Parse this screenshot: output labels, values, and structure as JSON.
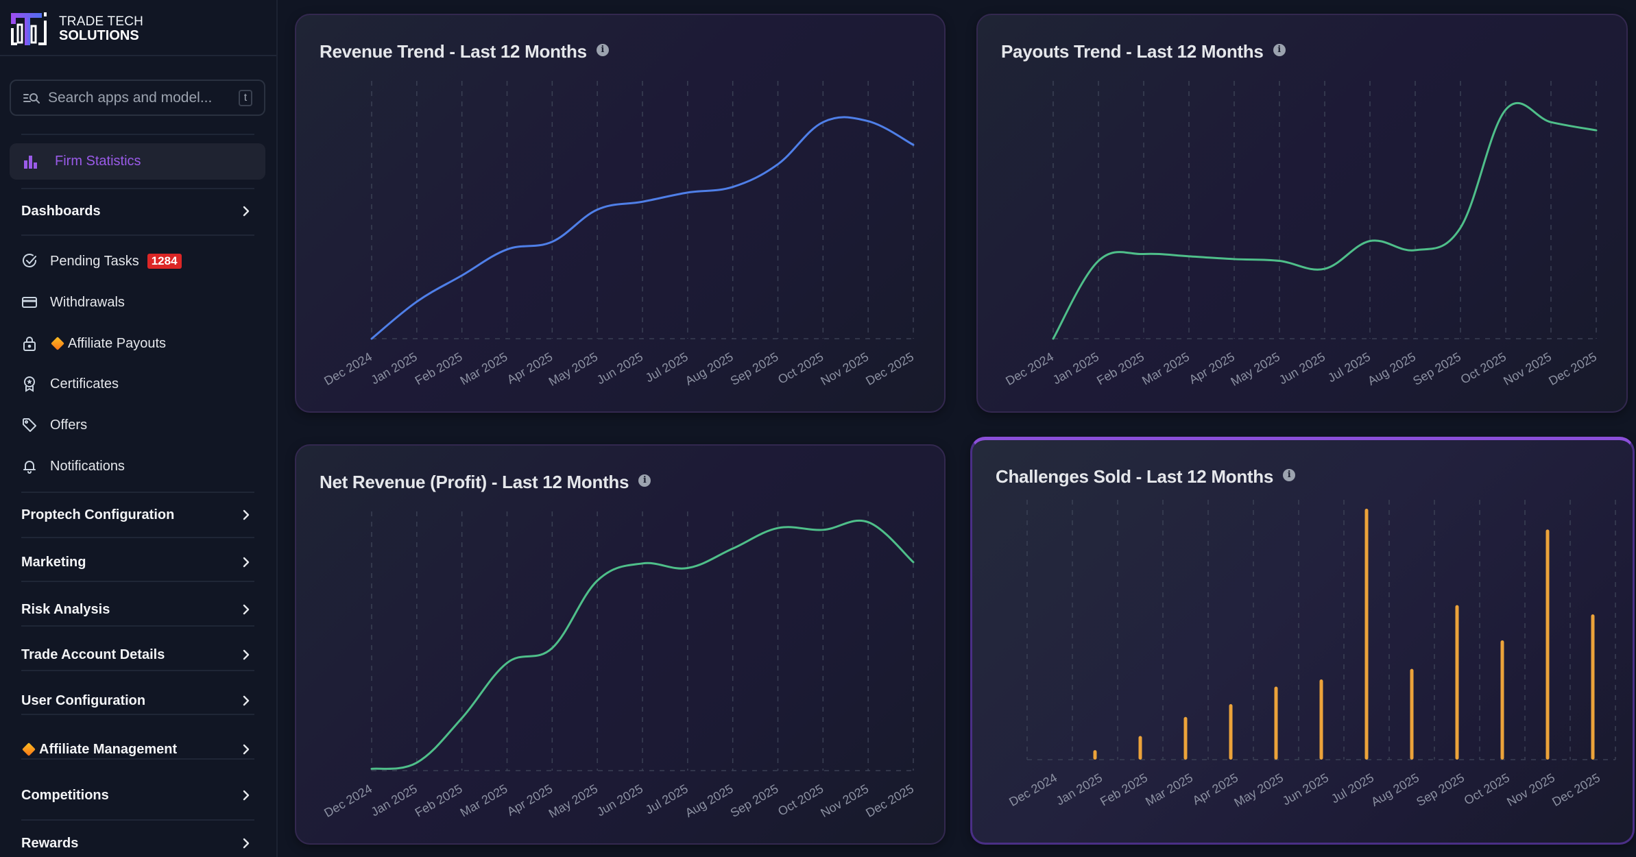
{
  "brand": {
    "line1": "TRADE TECH",
    "line2": "SOLUTIONS"
  },
  "search": {
    "placeholder": "Search apps and model...",
    "shortcut": "t"
  },
  "sidebar": {
    "active": {
      "label": "Firm Statistics",
      "icon": "bar-chart-icon",
      "color": "#9a5be8"
    },
    "dashboards": {
      "label": "Dashboards"
    },
    "items": [
      {
        "label": "Pending Tasks",
        "icon": "check-circle-icon",
        "badge": "1284",
        "badge_color": "#dc2626"
      },
      {
        "label": "Withdrawals",
        "icon": "credit-card-icon"
      },
      {
        "label": "Affiliate Payouts",
        "icon": "lock-icon",
        "diamond": true
      },
      {
        "label": "Certificates",
        "icon": "award-icon"
      },
      {
        "label": "Offers",
        "icon": "tag-icon"
      },
      {
        "label": "Notifications",
        "icon": "bell-icon"
      }
    ],
    "sections": [
      {
        "label": "Proptech Configuration"
      },
      {
        "label": "Marketing"
      },
      {
        "label": "Risk Analysis"
      },
      {
        "label": "Trade Account Details"
      },
      {
        "label": "User Configuration"
      },
      {
        "label": "Affiliate Management",
        "diamond": true
      },
      {
        "label": "Competitions"
      },
      {
        "label": "Rewards"
      }
    ]
  },
  "chart_data": [
    {
      "type": "line",
      "title": "Revenue Trend - Last 12 Months",
      "categories": [
        "Dec 2024",
        "Jan 2025",
        "Feb 2025",
        "Mar 2025",
        "Apr 2025",
        "May 2025",
        "Jun 2025",
        "Jul 2025",
        "Aug 2025",
        "Sep 2025",
        "Oct 2025",
        "Nov 2025",
        "Dec 2025"
      ],
      "values": [
        0,
        14.5,
        24.8,
        35,
        38,
        50.6,
        53.7,
        57.3,
        59.5,
        68.4,
        84.9,
        85.3,
        76
      ],
      "ylim": [
        0,
        100
      ],
      "y_units": "relative (no y-axis labels shown)",
      "color": "#4f7fe8",
      "grid": "vertical dashed",
      "xlabel": "",
      "ylabel": ""
    },
    {
      "type": "line",
      "title": "Payouts Trend - Last 12 Months",
      "categories": [
        "Dec 2024",
        "Jan 2025",
        "Feb 2025",
        "Mar 2025",
        "Apr 2025",
        "May 2025",
        "Jun 2025",
        "Jul 2025",
        "Aug 2025",
        "Sep 2025",
        "Oct 2025",
        "Nov 2025",
        "Dec 2025"
      ],
      "values": [
        0,
        30.5,
        33.2,
        32.3,
        31.2,
        30.5,
        27.4,
        38.3,
        34.7,
        43.5,
        89.8,
        84.9,
        81.7
      ],
      "ylim": [
        0,
        100
      ],
      "y_units": "relative (no y-axis labels shown)",
      "color": "#4fbf8a",
      "grid": "vertical dashed",
      "xlabel": "",
      "ylabel": ""
    },
    {
      "type": "line",
      "title": "Net Revenue (Profit) - Last 12 Months",
      "categories": [
        "Dec 2024",
        "Jan 2025",
        "Feb 2025",
        "Mar 2025",
        "Apr 2025",
        "May 2025",
        "Jun 2025",
        "Jul 2025",
        "Aug 2025",
        "Sep 2025",
        "Oct 2025",
        "Nov 2025",
        "Dec 2025"
      ],
      "values": [
        0.7,
        3.1,
        20.5,
        42,
        47.8,
        74.1,
        80.8,
        79,
        86.6,
        94.6,
        93.9,
        96.9,
        81.3
      ],
      "ylim": [
        0,
        100
      ],
      "y_units": "relative (no y-axis labels shown)",
      "color": "#4fbf8a",
      "grid": "vertical dashed",
      "xlabel": "",
      "ylabel": ""
    },
    {
      "type": "bar",
      "title": "Challenges Sold - Last 12 Months",
      "categories": [
        "Dec 2024",
        "Jan 2025",
        "Feb 2025",
        "Mar 2025",
        "Apr 2025",
        "May 2025",
        "Jun 2025",
        "Jul 2025",
        "Aug 2025",
        "Sep 2025",
        "Oct 2025",
        "Nov 2025",
        "Dec 2025"
      ],
      "values": [
        0,
        3.7,
        9.2,
        16.6,
        21.6,
        28.4,
        31.2,
        97.6,
        35.3,
        60.1,
        46.4,
        89.5,
        56.5
      ],
      "ylim": [
        0,
        100
      ],
      "y_units": "relative (no y-axis labels shown)",
      "color": "#eca33a",
      "grid": "vertical dashed",
      "xlabel": "",
      "ylabel": ""
    }
  ]
}
